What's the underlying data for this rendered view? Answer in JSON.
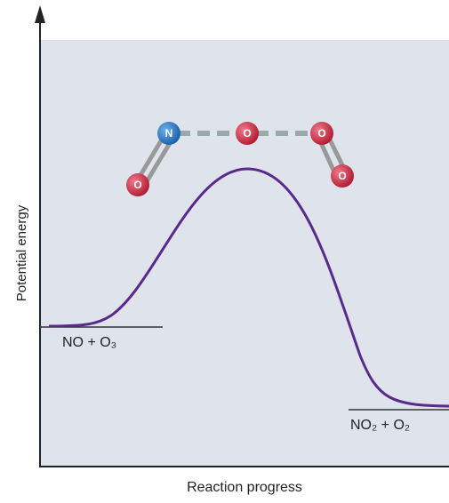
{
  "axes": {
    "y_label": "Potential energy",
    "x_label": "Reaction progress"
  },
  "reactants": {
    "label": "NO + O₃"
  },
  "products": {
    "label": "NO₂ + O₂"
  },
  "molecule": {
    "atoms": [
      {
        "label": "N"
      },
      {
        "label": "O"
      },
      {
        "label": "O"
      },
      {
        "label": "O"
      },
      {
        "label": "O"
      }
    ]
  }
}
